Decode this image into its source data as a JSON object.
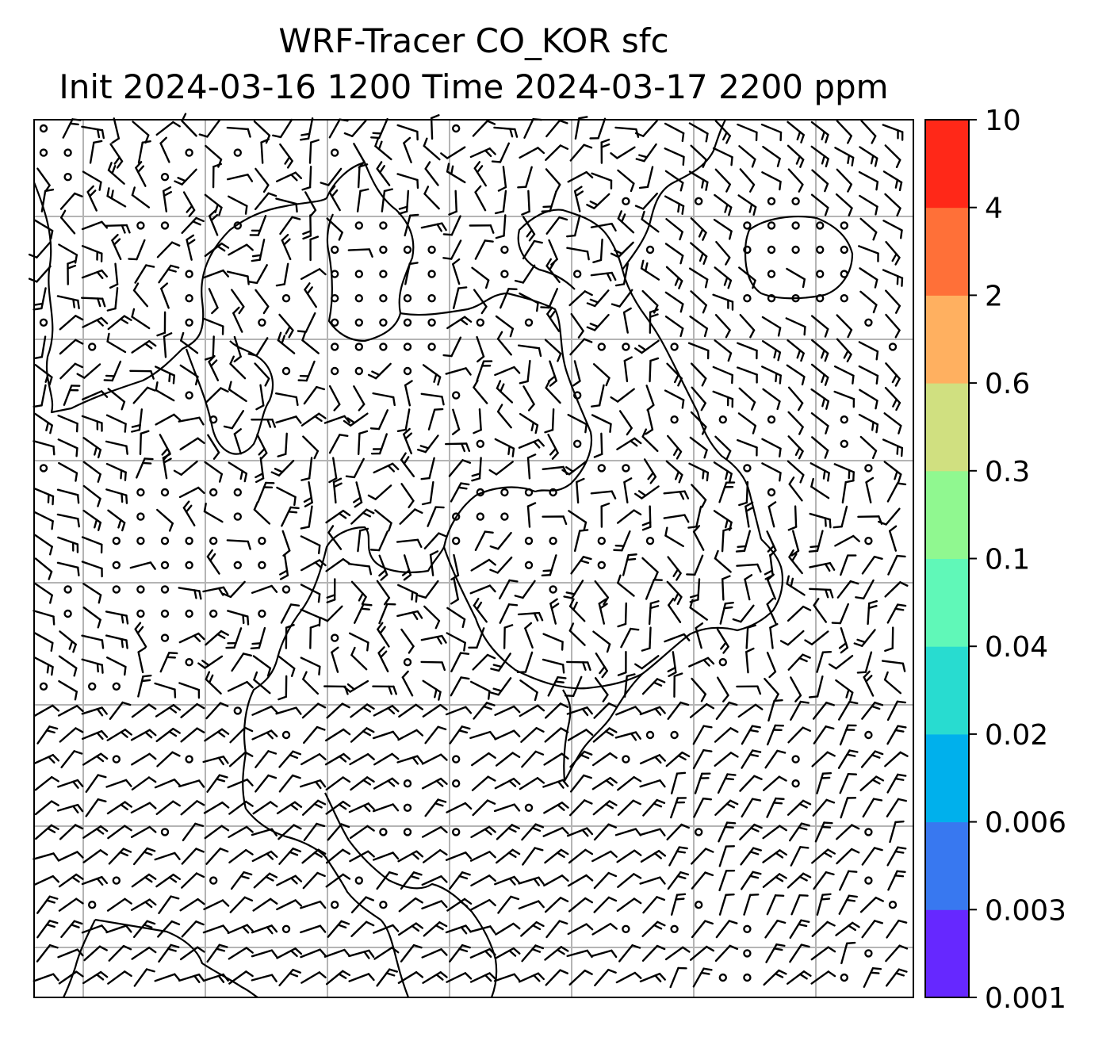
{
  "title": {
    "line1": "WRF-Tracer CO_KOR sfc",
    "line2": "Init 2024-03-16 1200 Time 2024-03-17 2200 ppm"
  },
  "colorbar": {
    "levels": [
      "0.001",
      "0.003",
      "0.006",
      "0.02",
      "0.04",
      "0.1",
      "0.3",
      "0.6",
      "2",
      "4",
      "10"
    ],
    "colors": [
      "#6628ff",
      "#3878f0",
      "#00b0ec",
      "#28dcd0",
      "#60f8b8",
      "#90f890",
      "#d0e080",
      "#ffb060",
      "#ff7038",
      "#ff2818"
    ]
  },
  "map": {
    "background": "#ffffff",
    "gridline_color": "#b4b4b4",
    "coastline_color": "#000000",
    "wind_barb_color": "#000000"
  }
}
